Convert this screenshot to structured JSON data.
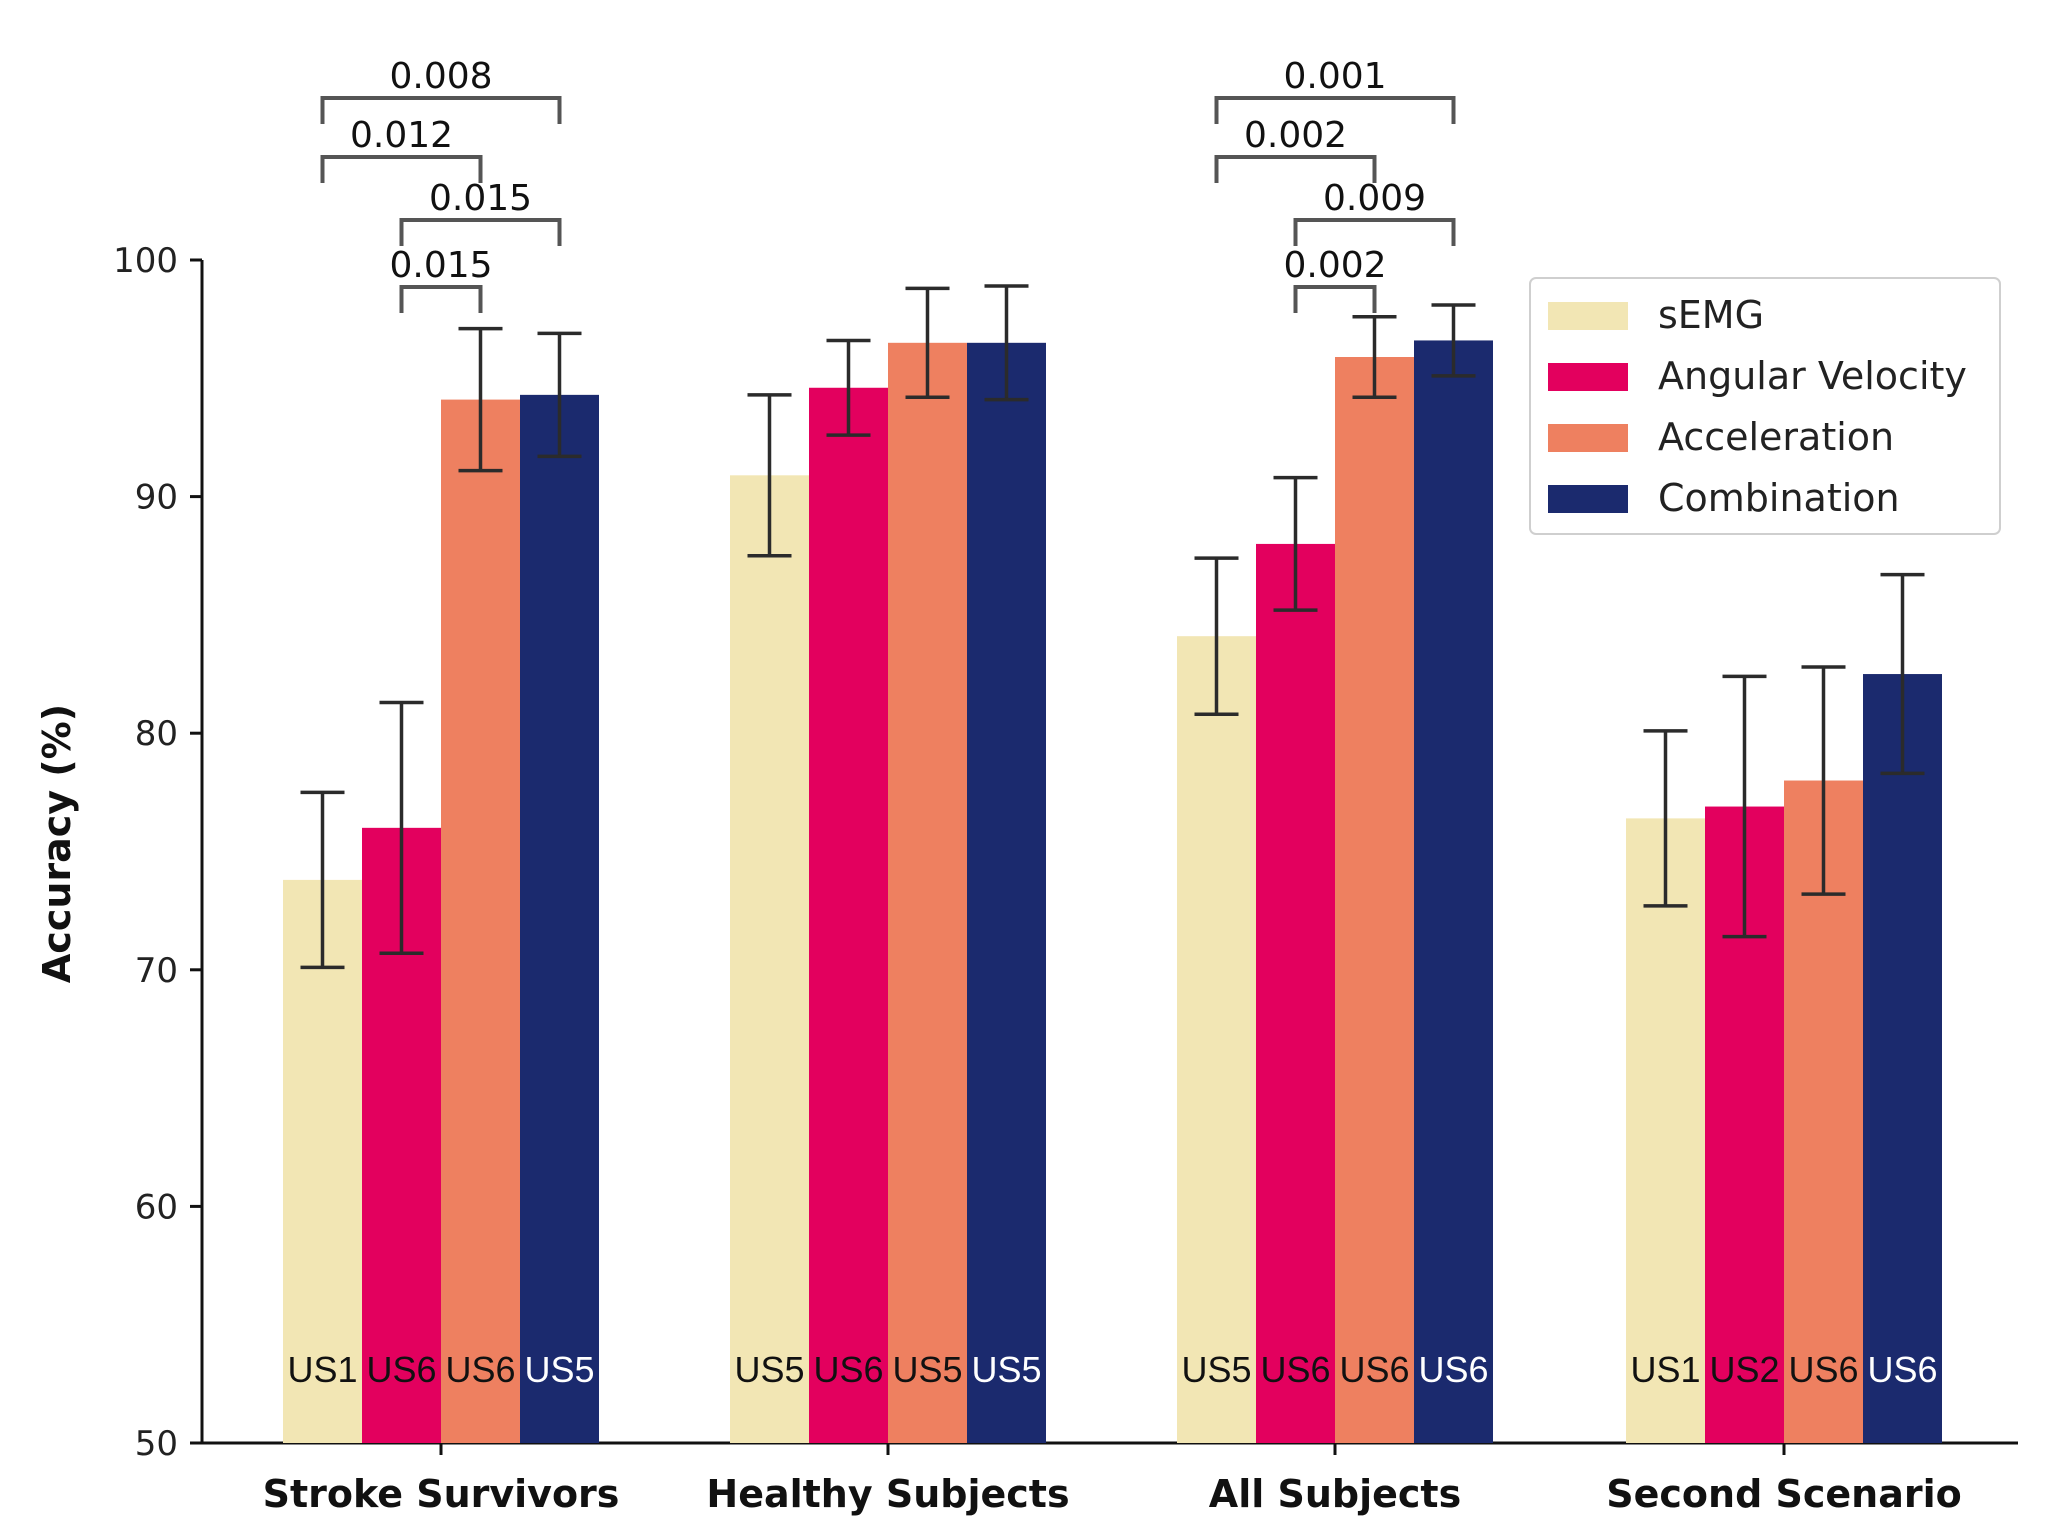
{
  "chart_data": {
    "type": "bar",
    "ylabel": "Accuracy (%)",
    "xlabel": "",
    "ylim": [
      50,
      100
    ],
    "yticks": [
      50,
      60,
      70,
      80,
      90,
      100
    ],
    "categories": [
      "Stroke Survivors",
      "Healthy Subjects",
      "All Subjects",
      "Second Scenario"
    ],
    "legend_position": "top-right",
    "series": [
      {
        "name": "sEMG",
        "color": "#f2e6b4",
        "label_color": "#111111",
        "values": [
          73.8,
          90.9,
          84.1,
          76.4
        ],
        "errors": [
          3.7,
          3.4,
          3.3,
          3.7
        ],
        "bar_labels": [
          "US1",
          "US5",
          "US5",
          "US1"
        ]
      },
      {
        "name": "Angular Velocity",
        "color": "#e3005e",
        "label_color": "#111111",
        "values": [
          76.0,
          94.6,
          88.0,
          76.9
        ],
        "errors": [
          5.3,
          2.0,
          2.8,
          5.5
        ],
        "bar_labels": [
          "US6",
          "US6",
          "US6",
          "US2"
        ]
      },
      {
        "name": "Acceleration",
        "color": "#ee8060",
        "label_color": "#111111",
        "values": [
          94.1,
          96.5,
          95.9,
          78.0
        ],
        "errors": [
          3.0,
          2.3,
          1.7,
          4.8
        ],
        "bar_labels": [
          "US6",
          "US5",
          "US6",
          "US6"
        ]
      },
      {
        "name": "Combination",
        "color": "#1b2a6e",
        "label_color": "#ffffff",
        "values": [
          94.3,
          96.5,
          96.6,
          82.5
        ],
        "errors": [
          2.6,
          2.4,
          1.5,
          4.2
        ],
        "bar_labels": [
          "US5",
          "US5",
          "US6",
          "US6"
        ]
      }
    ],
    "significance": [
      {
        "category": 0,
        "from": 0,
        "to": 3,
        "label": "0.008",
        "level": 4
      },
      {
        "category": 0,
        "from": 0,
        "to": 2,
        "label": "0.012",
        "level": 3
      },
      {
        "category": 0,
        "from": 1,
        "to": 3,
        "label": "0.015",
        "level": 2
      },
      {
        "category": 0,
        "from": 1,
        "to": 2,
        "label": "0.015",
        "level": 1
      },
      {
        "category": 2,
        "from": 0,
        "to": 3,
        "label": "0.001",
        "level": 4
      },
      {
        "category": 2,
        "from": 0,
        "to": 2,
        "label": "0.002",
        "level": 3
      },
      {
        "category": 2,
        "from": 1,
        "to": 3,
        "label": "0.009",
        "level": 2
      },
      {
        "category": 2,
        "from": 1,
        "to": 2,
        "label": "0.002",
        "level": 1
      }
    ]
  }
}
